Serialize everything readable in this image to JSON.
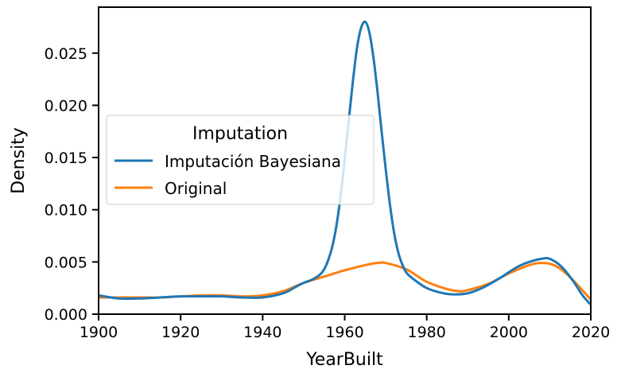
{
  "chart_data": {
    "type": "line",
    "title": "",
    "xlabel": "YearBuilt",
    "ylabel": "Density",
    "xlim": [
      1900,
      2020
    ],
    "ylim": [
      0,
      0.0294
    ],
    "xticks": [
      1900,
      1920,
      1940,
      1960,
      1980,
      2000,
      2020
    ],
    "xtick_labels": [
      "1900",
      "1920",
      "1940",
      "1960",
      "1980",
      "2000",
      "2020"
    ],
    "yticks": [
      0.0,
      0.005,
      0.01,
      0.015,
      0.02,
      0.025
    ],
    "ytick_labels": [
      "0.000",
      "0.005",
      "0.010",
      "0.015",
      "0.020",
      "0.025"
    ],
    "grid": false,
    "legend": {
      "title": "Imputation",
      "placement": "center-left"
    },
    "series": [
      {
        "name": "Imputación Bayesiana",
        "color": "#1f77b4",
        "x": [
          1900,
          1905,
          1910,
          1915,
          1920,
          1925,
          1930,
          1935,
          1940,
          1945,
          1948,
          1950,
          1952,
          1954,
          1955,
          1956,
          1957,
          1958,
          1959,
          1960,
          1961,
          1962,
          1963,
          1964,
          1965,
          1966,
          1967,
          1968,
          1969,
          1970,
          1971,
          1972,
          1973,
          1974,
          1975,
          1976,
          1978,
          1980,
          1983,
          1986,
          1990,
          1994,
          1998,
          2002,
          2005,
          2008,
          2010,
          2013,
          2016,
          2018,
          2020
        ],
        "y": [
          0.0018,
          0.0015,
          0.0015,
          0.0016,
          0.0017,
          0.0017,
          0.0017,
          0.0016,
          0.0016,
          0.002,
          0.0026,
          0.003,
          0.0033,
          0.0038,
          0.0043,
          0.0052,
          0.0065,
          0.0085,
          0.0113,
          0.0148,
          0.0186,
          0.0223,
          0.0255,
          0.0274,
          0.028,
          0.027,
          0.0246,
          0.0213,
          0.0175,
          0.0139,
          0.0106,
          0.0079,
          0.006,
          0.0048,
          0.004,
          0.0036,
          0.003,
          0.0025,
          0.0021,
          0.0019,
          0.002,
          0.0026,
          0.0035,
          0.0045,
          0.005,
          0.0053,
          0.0053,
          0.0045,
          0.003,
          0.0018,
          0.0009
        ]
      },
      {
        "name": "Original",
        "color": "#ff7f0e",
        "x": [
          1900,
          1905,
          1910,
          1915,
          1920,
          1925,
          1930,
          1935,
          1940,
          1945,
          1950,
          1955,
          1960,
          1965,
          1968,
          1970,
          1975,
          1980,
          1985,
          1988,
          1990,
          1995,
          2000,
          2005,
          2008,
          2011,
          2014,
          2017,
          2020
        ],
        "y": [
          0.0016,
          0.0016,
          0.0016,
          0.0016,
          0.0017,
          0.0018,
          0.0018,
          0.0017,
          0.0018,
          0.0022,
          0.003,
          0.0036,
          0.0042,
          0.0047,
          0.0049,
          0.0049,
          0.0043,
          0.0031,
          0.0024,
          0.0022,
          0.0023,
          0.0029,
          0.0039,
          0.0047,
          0.0049,
          0.0047,
          0.0039,
          0.0027,
          0.0014
        ]
      }
    ]
  }
}
